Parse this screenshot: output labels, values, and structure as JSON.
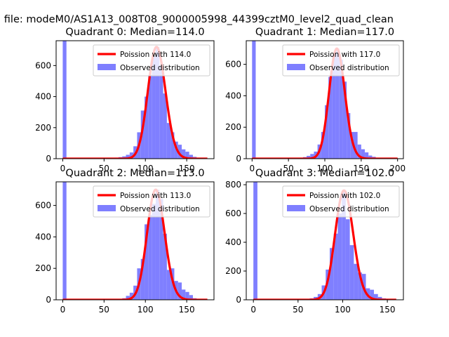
{
  "suptitle": "n file: modeM0/AS1A13_008T08_9000005998_44399cztM0_level2_quad_clean",
  "chart_data": [
    {
      "type": "bar",
      "title": "Quadrant 0: Median=114.0",
      "median": 114.0,
      "xlim": [
        -8,
        183
      ],
      "ylim": [
        0,
        760
      ],
      "xticks": [
        0,
        50,
        100,
        150
      ],
      "yticks": [
        0,
        200,
        400,
        600
      ],
      "show_xticks": true,
      "bin_width": 4.5,
      "bins_x": [
        0,
        45,
        54,
        58.5,
        63,
        67.5,
        72,
        76.5,
        81,
        85.5,
        90,
        94.5,
        99,
        103.5,
        108,
        112.5,
        117,
        121.5,
        126,
        130.5,
        135,
        139.5,
        144,
        148.5,
        153,
        157.5,
        162
      ],
      "bins_y": [
        760,
        2,
        4,
        5,
        7,
        10,
        15,
        25,
        40,
        80,
        170,
        310,
        400,
        540,
        660,
        720,
        600,
        420,
        230,
        170,
        110,
        90,
        60,
        45,
        25,
        12,
        5
      ],
      "legend": [
        "Poission with 114.0",
        "Observed distribution"
      ]
    },
    {
      "type": "bar",
      "title": "Quadrant 1: Median=117.0",
      "median": 117.0,
      "xlim": [
        -8,
        208
      ],
      "ylim": [
        0,
        750
      ],
      "xticks": [
        0,
        50,
        100,
        150,
        200
      ],
      "yticks": [
        0,
        200,
        400,
        600
      ],
      "show_xticks": true,
      "bin_width": 5,
      "bins_x": [
        0,
        55,
        60,
        65,
        70,
        75,
        80,
        85,
        90,
        95,
        100,
        105,
        110,
        115,
        120,
        125,
        130,
        135,
        140,
        145,
        150,
        155,
        160,
        165,
        170,
        175
      ],
      "bins_y": [
        750,
        3,
        4,
        6,
        10,
        18,
        30,
        45,
        90,
        170,
        340,
        520,
        660,
        700,
        630,
        490,
        290,
        170,
        170,
        90,
        60,
        40,
        20,
        12,
        6,
        3
      ],
      "legend": [
        "Poission with 117.0",
        "Observed distribution"
      ]
    },
    {
      "type": "bar",
      "title": "Quadrant 2: Median=113.0",
      "median": 113.0,
      "xlim": [
        -8,
        183
      ],
      "ylim": [
        0,
        750
      ],
      "xticks": [
        0,
        50,
        100,
        150
      ],
      "yticks": [
        0,
        200,
        400,
        600
      ],
      "show_xticks": true,
      "bin_width": 4.5,
      "bins_x": [
        0,
        67.5,
        72,
        76.5,
        81,
        85.5,
        90,
        94.5,
        99,
        103.5,
        108,
        112.5,
        117,
        121.5,
        126,
        130.5,
        135,
        139.5,
        144,
        148.5,
        153,
        157.5
      ],
      "bins_y": [
        750,
        5,
        10,
        25,
        45,
        90,
        200,
        260,
        480,
        540,
        610,
        700,
        640,
        420,
        190,
        200,
        120,
        110,
        65,
        50,
        30,
        10
      ],
      "legend": [
        "Poission with 113.0",
        "Observed distribution"
      ]
    },
    {
      "type": "bar",
      "title": "Quadrant 3: Median=102.0",
      "median": 102.0,
      "xlim": [
        -8,
        168
      ],
      "ylim": [
        0,
        820
      ],
      "xticks": [
        0,
        50,
        100,
        150
      ],
      "yticks": [
        0,
        200,
        400,
        600,
        800
      ],
      "show_xticks": true,
      "bin_width": 4.5,
      "bins_x": [
        0,
        58.5,
        63,
        67.5,
        72,
        76.5,
        81,
        85.5,
        90,
        94.5,
        99,
        103.5,
        108,
        112.5,
        117,
        121.5,
        126,
        130.5,
        135,
        139.5,
        144
      ],
      "bins_y": [
        820,
        5,
        10,
        20,
        40,
        100,
        210,
        360,
        460,
        600,
        760,
        560,
        380,
        250,
        190,
        180,
        80,
        70,
        40,
        20,
        10
      ],
      "legend": [
        "Poission with 102.0",
        "Observed distribution"
      ]
    }
  ],
  "colors": {
    "poisson": "#ff0000",
    "observed": "#7f7fff"
  }
}
